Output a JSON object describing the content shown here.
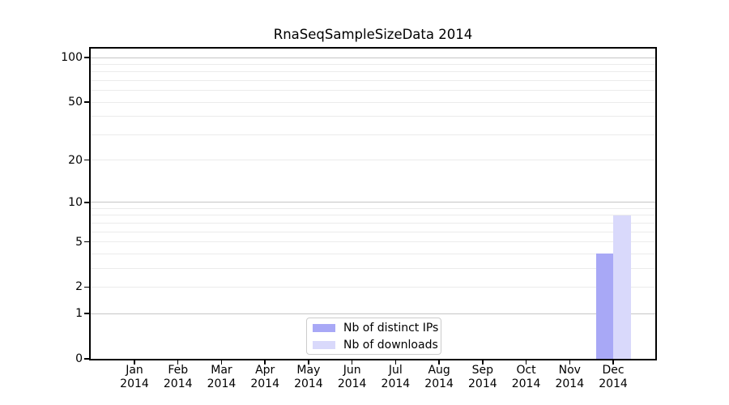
{
  "chart_data": {
    "type": "bar",
    "title": "RnaSeqSampleSizeData 2014",
    "xlabel": "",
    "ylabel": "",
    "x_tick_labels": [
      [
        "Jan",
        "2014"
      ],
      [
        "Feb",
        "2014"
      ],
      [
        "Mar",
        "2014"
      ],
      [
        "Apr",
        "2014"
      ],
      [
        "May",
        "2014"
      ],
      [
        "Jun",
        "2014"
      ],
      [
        "Jul",
        "2014"
      ],
      [
        "Aug",
        "2014"
      ],
      [
        "Sep",
        "2014"
      ],
      [
        "Oct",
        "2014"
      ],
      [
        "Nov",
        "2014"
      ],
      [
        "Dec",
        "2014"
      ]
    ],
    "series": [
      {
        "name": "Nb of distinct IPs",
        "color": "#a8a8f6",
        "values": [
          0,
          0,
          0,
          0,
          0,
          0,
          0,
          0,
          0,
          0,
          0,
          4
        ]
      },
      {
        "name": "Nb of downloads",
        "color": "#d9d9fb",
        "values": [
          0,
          0,
          0,
          0,
          0,
          0,
          0,
          0,
          0,
          0,
          0,
          8
        ]
      }
    ],
    "yscale": "log1p",
    "ylim": [
      0,
      115
    ],
    "y_tick_values": [
      0,
      1,
      2,
      5,
      10,
      20,
      50,
      100
    ],
    "grid_minor_values": [
      2,
      3,
      4,
      5,
      6,
      7,
      8,
      9,
      20,
      30,
      40,
      50,
      60,
      70,
      80,
      90
    ],
    "grid_major_values": [
      1,
      10,
      100
    ],
    "grid_minor_color": "#ebebeb",
    "grid_major_color": "#c6c6c6",
    "legend_position": "lower center",
    "grid": "on"
  }
}
